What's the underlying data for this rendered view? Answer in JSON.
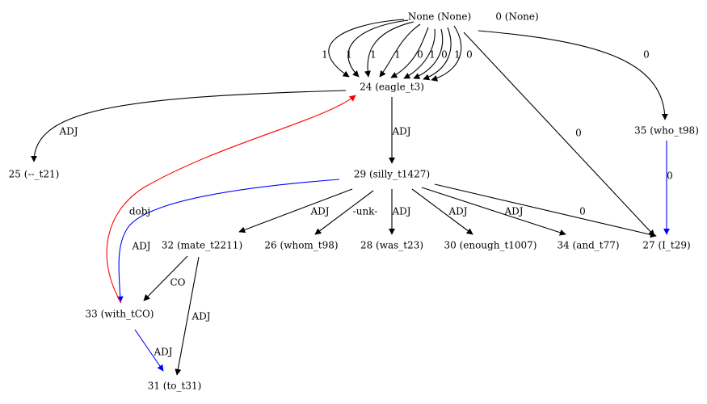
{
  "colors": {
    "default": "#000000",
    "red": "#ff0000",
    "blue": "#0000ff"
  },
  "nodes": [
    {
      "id": "none",
      "label": "None (None)"
    },
    {
      "id": "zero",
      "label": "0 (None)"
    },
    {
      "id": "n24",
      "label": "24 (eagle_t3)"
    },
    {
      "id": "n25",
      "label": "25 (--_t21)"
    },
    {
      "id": "n29",
      "label": "29 (silly_t1427)"
    },
    {
      "id": "n35",
      "label": "35 (who_t98)"
    },
    {
      "id": "n32",
      "label": "32 (mate_t2211)"
    },
    {
      "id": "n26",
      "label": "26 (whom_t98)"
    },
    {
      "id": "n28",
      "label": "28 (was_t23)"
    },
    {
      "id": "n30",
      "label": "30 (enough_t1007)"
    },
    {
      "id": "n34",
      "label": "34 (and_t77)"
    },
    {
      "id": "n27",
      "label": "27 (I_t29)"
    },
    {
      "id": "n33",
      "label": "33 (with_tCO)"
    },
    {
      "id": "n31",
      "label": "31 (to_t31)"
    }
  ],
  "edges": [
    {
      "id": "e1",
      "from": "none",
      "to": "n24",
      "label": "1",
      "color": "default"
    },
    {
      "id": "e2",
      "from": "none",
      "to": "n24",
      "label": "1",
      "color": "default"
    },
    {
      "id": "e3",
      "from": "none",
      "to": "n24",
      "label": "1",
      "color": "default"
    },
    {
      "id": "e4",
      "from": "none",
      "to": "n24",
      "label": "1",
      "color": "default"
    },
    {
      "id": "e5",
      "from": "none",
      "to": "n24",
      "label": "0",
      "color": "default"
    },
    {
      "id": "e6",
      "from": "none",
      "to": "n24",
      "label": "1",
      "color": "default"
    },
    {
      "id": "e7",
      "from": "none",
      "to": "n24",
      "label": "0",
      "color": "default"
    },
    {
      "id": "e8",
      "from": "none",
      "to": "n24",
      "label": "1",
      "color": "default"
    },
    {
      "id": "e9",
      "from": "none",
      "to": "n24",
      "label": "0",
      "color": "default"
    },
    {
      "id": "e10",
      "from": "none",
      "to": "n35",
      "label": "0",
      "color": "default"
    },
    {
      "id": "e11",
      "from": "none",
      "to": "n27",
      "label": "0",
      "color": "default"
    },
    {
      "id": "e12",
      "from": "n24",
      "to": "n25",
      "label": "ADJ",
      "color": "default"
    },
    {
      "id": "e13",
      "from": "n24",
      "to": "n29",
      "label": "ADJ",
      "color": "default"
    },
    {
      "id": "e14",
      "from": "n35",
      "to": "n27",
      "label": "0",
      "color": "blue"
    },
    {
      "id": "e15",
      "from": "n29",
      "to": "n32",
      "label": "ADJ",
      "color": "default"
    },
    {
      "id": "e16",
      "from": "n29",
      "to": "n26",
      "label": "-unk-",
      "color": "default"
    },
    {
      "id": "e17",
      "from": "n29",
      "to": "n28",
      "label": "ADJ",
      "color": "default"
    },
    {
      "id": "e18",
      "from": "n29",
      "to": "n30",
      "label": "ADJ",
      "color": "default"
    },
    {
      "id": "e19",
      "from": "n29",
      "to": "n34",
      "label": "ADJ",
      "color": "default"
    },
    {
      "id": "e20",
      "from": "n29",
      "to": "n27",
      "label": "0",
      "color": "default"
    },
    {
      "id": "e21",
      "from": "n29",
      "to": "n33",
      "label": "ADJ",
      "color": "blue"
    },
    {
      "id": "e22",
      "from": "n33",
      "to": "n24",
      "label": "dobj",
      "color": "red"
    },
    {
      "id": "e23",
      "from": "n32",
      "to": "n33",
      "label": "CO",
      "color": "default"
    },
    {
      "id": "e24",
      "from": "n32",
      "to": "n31",
      "label": "ADJ",
      "color": "default"
    },
    {
      "id": "e25",
      "from": "n33",
      "to": "n31",
      "label": "ADJ",
      "color": "blue"
    }
  ]
}
